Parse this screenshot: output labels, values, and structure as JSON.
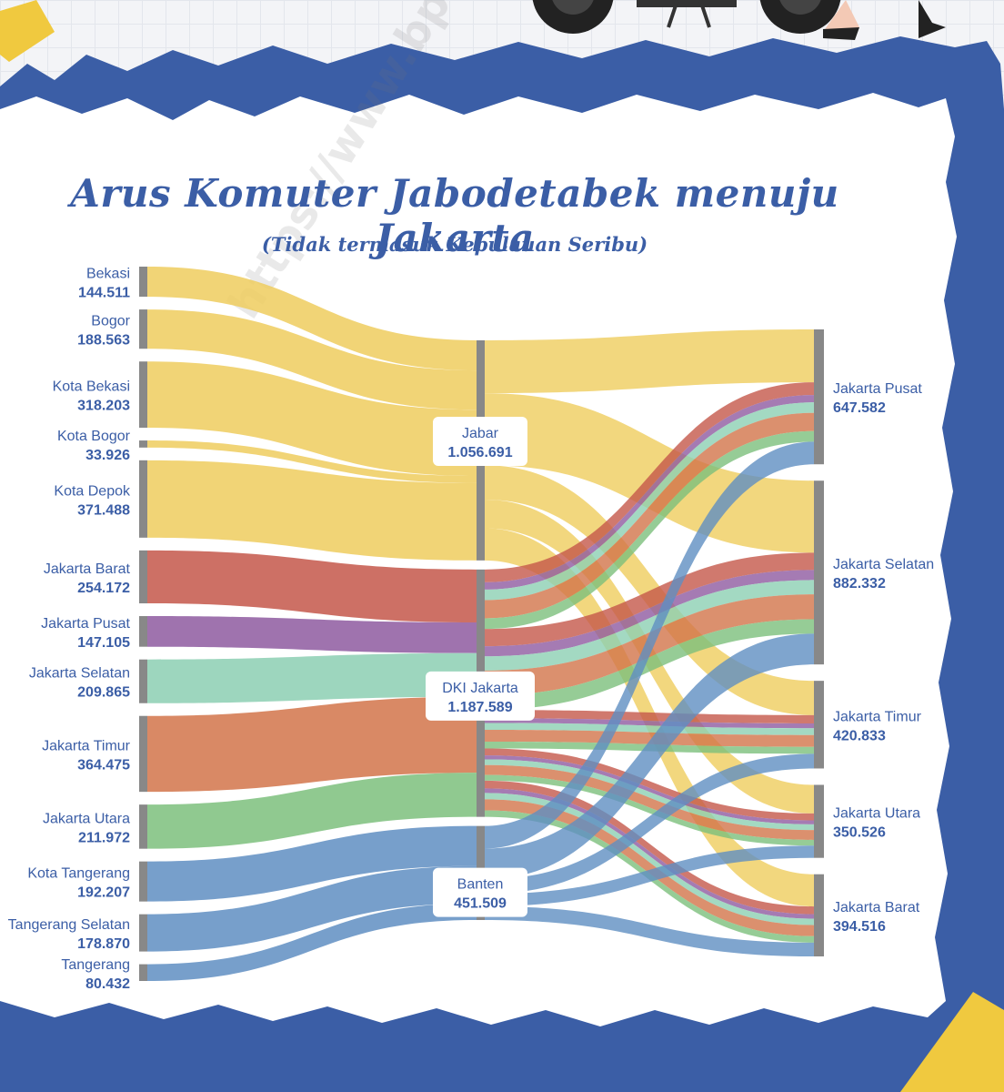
{
  "watermark": "https://www.bps.go.id",
  "colors": {
    "frame": "#3b5ea6",
    "accent": "#f0c93f",
    "jabar": "#efcd5e",
    "jakarta_barat": "#c4574a",
    "jakarta_pusat": "#8e5aa0",
    "jakarta_selatan": "#8ccfb3",
    "jakarta_timur": "#d2744a",
    "jakarta_utara": "#7cbf7c",
    "banten": "#5f8ec2",
    "node": "#888888"
  },
  "chart_data": {
    "type": "sankey",
    "title": "Arus Komuter Jabodetabek menuju Jakarta",
    "subtitle": "(Tidak termasuk Kepulauan Seribu)",
    "sources": [
      {
        "name": "Bekasi",
        "label": "144.511",
        "value": 144511,
        "group": "Jabar"
      },
      {
        "name": "Bogor",
        "label": "188.563",
        "value": 188563,
        "group": "Jabar"
      },
      {
        "name": "Kota Bekasi",
        "label": "318.203",
        "value": 318203,
        "group": "Jabar"
      },
      {
        "name": "Kota Bogor",
        "label": "33.926",
        "value": 33926,
        "group": "Jabar"
      },
      {
        "name": "Kota Depok",
        "label": "371.488",
        "value": 371488,
        "group": "Jabar"
      },
      {
        "name": "Jakarta Barat",
        "label": "254.172",
        "value": 254172,
        "group": "DKI Jakarta"
      },
      {
        "name": "Jakarta Pusat",
        "label": "147.105",
        "value": 147105,
        "group": "DKI Jakarta"
      },
      {
        "name": "Jakarta Selatan",
        "label": "209.865",
        "value": 209865,
        "group": "DKI Jakarta"
      },
      {
        "name": "Jakarta Timur",
        "label": "364.475",
        "value": 364475,
        "group": "DKI Jakarta"
      },
      {
        "name": "Jakarta Utara",
        "label": "211.972",
        "value": 211972,
        "group": "DKI Jakarta"
      },
      {
        "name": "Kota Tangerang",
        "label": "192.207",
        "value": 192207,
        "group": "Banten"
      },
      {
        "name": "Tangerang Selatan",
        "label": "178.870",
        "value": 178870,
        "group": "Banten"
      },
      {
        "name": "Tangerang",
        "label": "80.432",
        "value": 80432,
        "group": "Banten"
      }
    ],
    "groups": [
      {
        "name": "Jabar",
        "label": "1.056.691",
        "value": 1056691
      },
      {
        "name": "DKI Jakarta",
        "label": "1.187.589",
        "value": 1187589
      },
      {
        "name": "Banten",
        "label": "451.509",
        "value": 451509
      }
    ],
    "destinations": [
      {
        "name": "Jakarta Pusat",
        "label": "647.582",
        "value": 647582
      },
      {
        "name": "Jakarta Selatan",
        "label": "882.332",
        "value": 882332
      },
      {
        "name": "Jakarta Timur",
        "label": "420.833",
        "value": 420833
      },
      {
        "name": "Jakarta Utara",
        "label": "350.526",
        "value": 350526
      },
      {
        "name": "Jakarta Barat",
        "label": "394.516",
        "value": 394516
      }
    ]
  }
}
